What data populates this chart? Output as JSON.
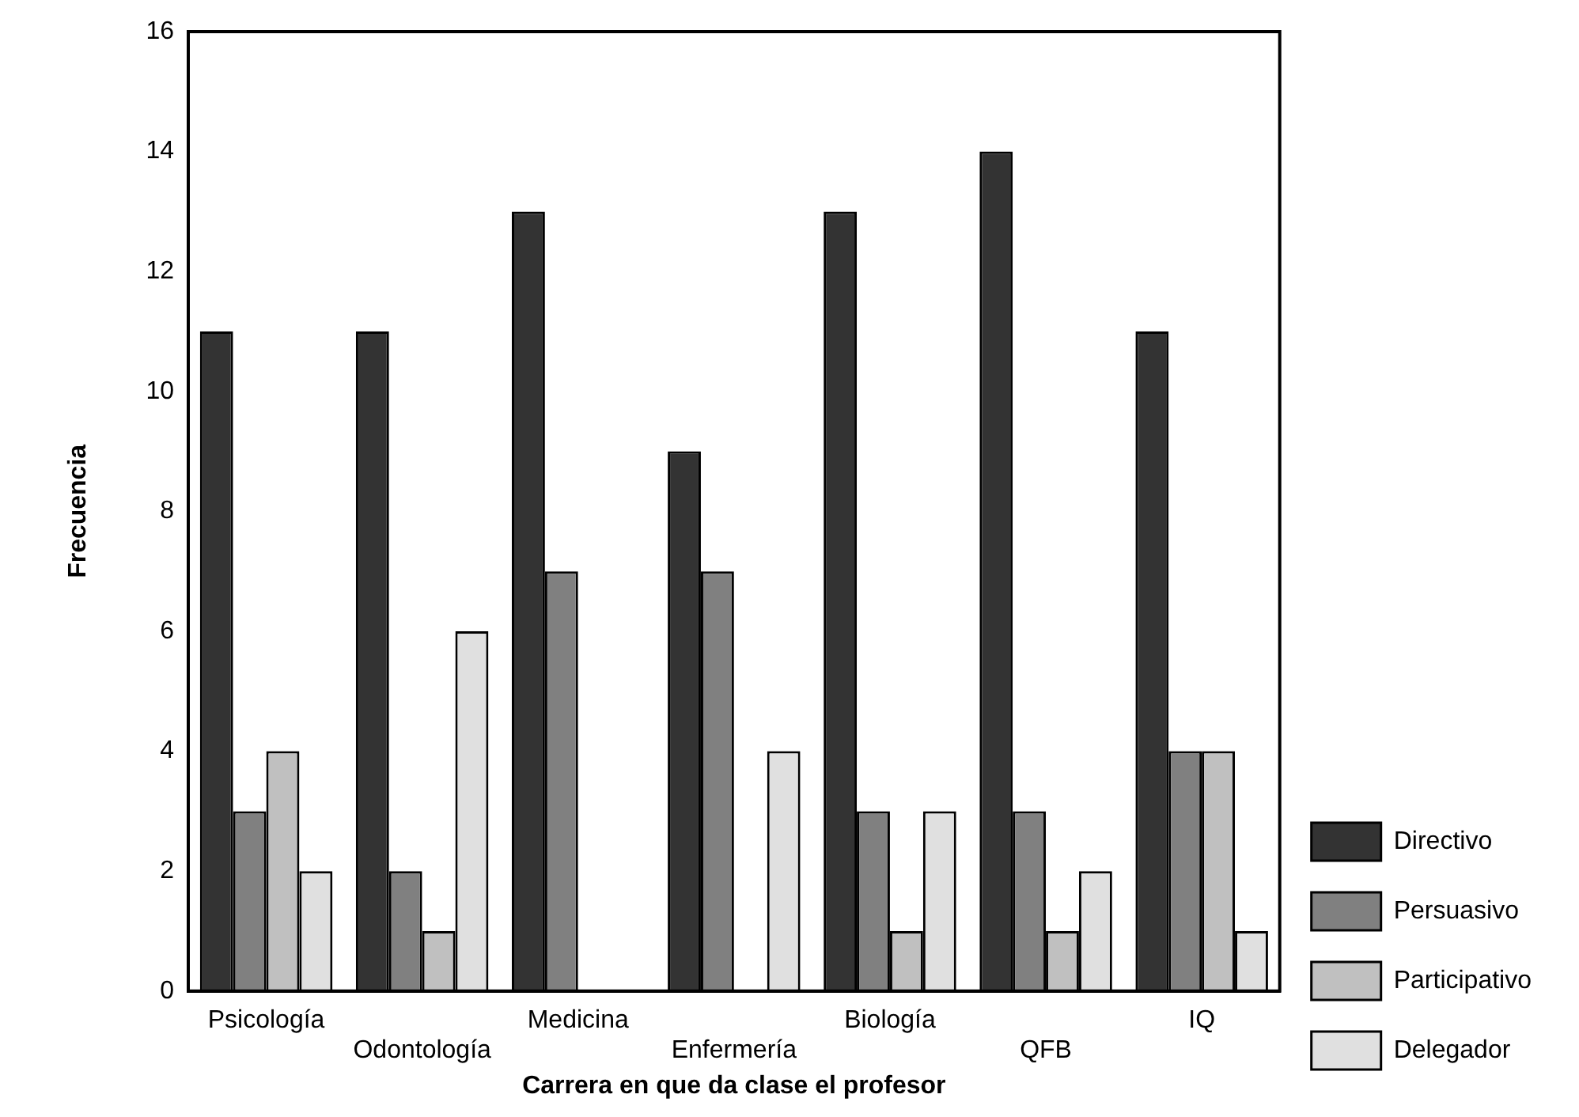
{
  "chart_data": {
    "type": "bar",
    "xlabel": "Carrera en que da clase el profesor",
    "ylabel": "Frecuencia",
    "categories": [
      "Psicología",
      "Odontología",
      "Medicina",
      "Enfermería",
      "Biología",
      "QFB",
      "IQ"
    ],
    "series": [
      {
        "name": "Directivo",
        "color": "#333333",
        "values": [
          11,
          11,
          13,
          9,
          13,
          14,
          11
        ]
      },
      {
        "name": "Persuasivo",
        "color": "#808080",
        "values": [
          3,
          2,
          7,
          7,
          3,
          3,
          4
        ]
      },
      {
        "name": "Participativo",
        "color": "#c0c0c0",
        "values": [
          4,
          1,
          0,
          0,
          1,
          1,
          4
        ]
      },
      {
        "name": "Delegador",
        "color": "#e0e0e0",
        "values": [
          2,
          6,
          0,
          4,
          3,
          2,
          1
        ]
      }
    ],
    "ylim": [
      0,
      16
    ],
    "yticks": [
      0,
      2,
      4,
      6,
      8,
      10,
      12,
      14,
      16
    ],
    "grid": false,
    "legend": "right"
  }
}
